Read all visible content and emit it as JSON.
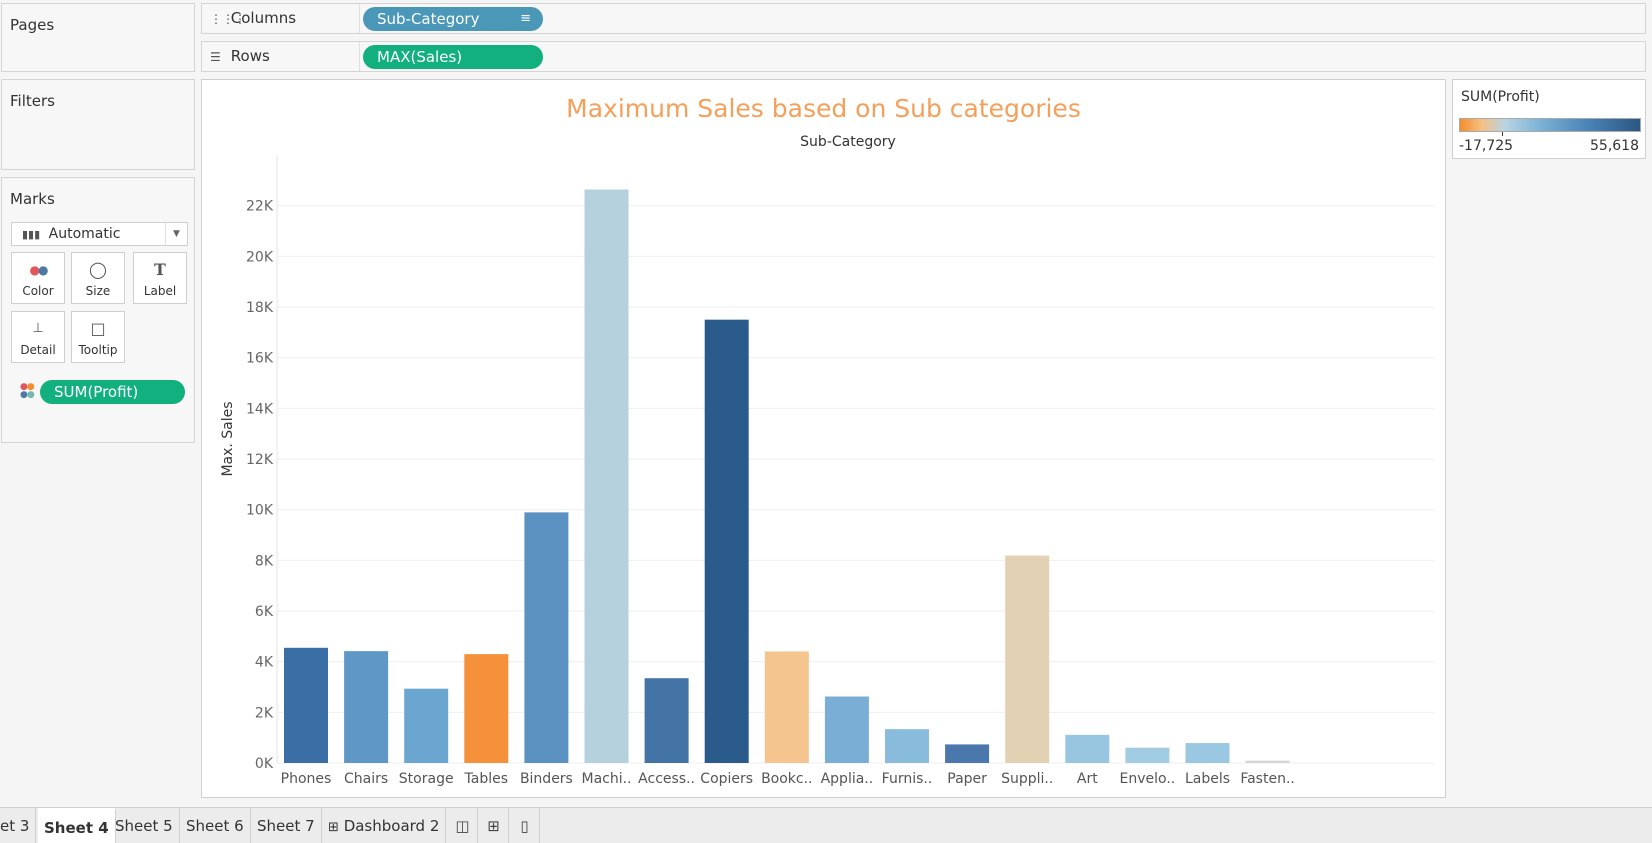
{
  "pages": {
    "title": "Pages"
  },
  "filters": {
    "title": "Filters"
  },
  "marks": {
    "title": "Marks",
    "type_value": "Automatic",
    "buttons": [
      "Color",
      "Size",
      "Label",
      "Detail",
      "Tooltip"
    ],
    "field_pill": "SUM(Profit)"
  },
  "shelves": {
    "columns_label": "Columns",
    "columns_pill": "Sub-Category",
    "rows_label": "Rows",
    "rows_pill": "MAX(Sales)"
  },
  "legend": {
    "title": "SUM(Profit)",
    "min": "-17,725",
    "max": "55,618"
  },
  "tabs": {
    "items": [
      "et 3",
      "Sheet 4",
      "Sheet 5",
      "Sheet 6",
      "Sheet 7",
      "Dashboard 2"
    ],
    "active": "Sheet 4"
  },
  "colors": {
    "title": "#f5a05a",
    "pill_blue": "#4a97b7",
    "pill_green": "#11b07e"
  },
  "chart_data": {
    "type": "bar",
    "title": "Maximum Sales based on Sub categories",
    "xlabel": "Sub-Category",
    "ylabel": "Max. Sales",
    "ylim": [
      0,
      24000
    ],
    "yticks": [
      0,
      2000,
      4000,
      6000,
      8000,
      10000,
      12000,
      14000,
      16000,
      18000,
      20000,
      22000
    ],
    "ytick_labels": [
      "0K",
      "2K",
      "4K",
      "6K",
      "8K",
      "10K",
      "12K",
      "14K",
      "16K",
      "18K",
      "20K",
      "22K"
    ],
    "categories": [
      "Phones",
      "Chairs",
      "Storage",
      "Tables",
      "Binders",
      "Machi..",
      "Access..",
      "Copiers",
      "Bookc..",
      "Applia..",
      "Furnis..",
      "Paper",
      "Suppli..",
      "Art",
      "Envelo..",
      "Labels",
      "Fasten.."
    ],
    "values": [
      4548,
      4416,
      2934,
      4298,
      9893,
      22638,
      3347,
      17500,
      4404,
      2625,
      1336,
      734,
      8187,
      1113,
      604,
      787,
      93
    ],
    "colors": [
      "#3b6ea5",
      "#5f98c6",
      "#6ba6d0",
      "#f5913a",
      "#5b92c2",
      "#b4d1dd",
      "#4474a6",
      "#2b5b8a",
      "#f4c58e",
      "#7aaed4",
      "#88bbdc",
      "#4a78ad",
      "#e3d1b3",
      "#98c6e1",
      "#a2cbe4",
      "#9ac8e2",
      "#d6d6d6"
    ]
  }
}
